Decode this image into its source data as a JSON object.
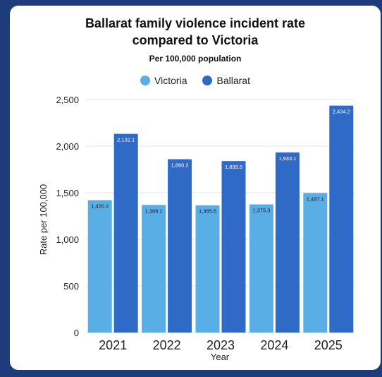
{
  "chart_data": {
    "type": "bar",
    "title_lines": [
      "Ballarat family violence incident rate",
      "compared to Victoria"
    ],
    "subtitle": "Per 100,000 population",
    "xlabel": "Year",
    "ylabel": "Rate per 100,000",
    "categories": [
      "2021",
      "2022",
      "2023",
      "2024",
      "2025"
    ],
    "ylim": [
      0,
      2500
    ],
    "yticks": [
      0,
      500,
      1000,
      1500,
      2000,
      2500
    ],
    "ytick_labels": [
      "0",
      "500",
      "1,000",
      "1,500",
      "2,000",
      "2,500"
    ],
    "grid": true,
    "legend_position": "top-center",
    "series": [
      {
        "name": "Victoria",
        "color": "#5aaee6",
        "values": [
          1420.2,
          1369.1,
          1365.6,
          1375.3,
          1497.1
        ],
        "labels": [
          "1,420.2",
          "1,369.1",
          "1,365.6",
          "1,375.3",
          "1,497.1"
        ]
      },
      {
        "name": "Ballarat",
        "color": "#2f6ac6",
        "values": [
          2132.1,
          1860.2,
          1839.6,
          1933.1,
          2434.2
        ],
        "labels": [
          "2,132.1",
          "1,860.2",
          "1,839.6",
          "1,933.1",
          "2,434.2"
        ]
      }
    ]
  }
}
